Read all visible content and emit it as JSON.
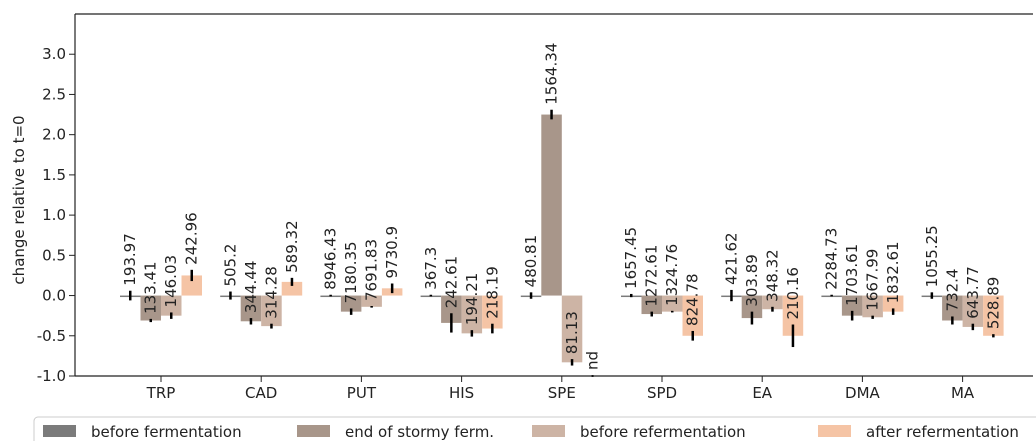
{
  "chart_data": {
    "type": "bar",
    "ylabel": "change relative to t=0",
    "xlabel": "",
    "title": "",
    "ylim": [
      -1.0,
      3.5
    ],
    "y_ticks": [
      -1.0,
      -0.5,
      0.0,
      0.5,
      1.0,
      1.5,
      2.0,
      2.5,
      3.0
    ],
    "y_tick_labels": [
      "-1.0",
      "-0.5",
      "0.0",
      "0.5",
      "1.0",
      "1.5",
      "2.0",
      "2.5",
      "3.0"
    ],
    "categories": [
      "TRP",
      "CAD",
      "PUT",
      "HIS",
      "SPE",
      "SPD",
      "EA",
      "DMA",
      "MA"
    ],
    "legend_position": "bottom",
    "series": [
      {
        "name": "before fermentation",
        "color": "#7b7b7b",
        "values": [
          0.0,
          0.0,
          0.0,
          0.0,
          0.0,
          0.0,
          0.0,
          0.0,
          0.0
        ],
        "errors": [
          0.06,
          0.05,
          0.01,
          0.01,
          0.04,
          0.02,
          0.07,
          0.01,
          0.04
        ],
        "labels": [
          "193.97",
          "505.2",
          "8946.43",
          "367.3",
          "480.81",
          "1657.45",
          "421.62",
          "2284.73",
          "1055.25"
        ]
      },
      {
        "name": "end of stormy ferm.",
        "color": "#a8968a",
        "values": [
          -0.31,
          -0.32,
          -0.2,
          -0.34,
          2.25,
          -0.23,
          -0.28,
          -0.25,
          -0.31
        ],
        "errors": [
          0.02,
          0.04,
          0.04,
          0.12,
          0.06,
          0.03,
          0.08,
          0.06,
          0.05
        ],
        "labels": [
          "133.41",
          "344.44",
          "7180.35",
          "242.61",
          "1564.34",
          "1272.61",
          "303.89",
          "1703.61",
          "732.4"
        ]
      },
      {
        "name": "before refermentation",
        "color": "#cdb4a5",
        "values": [
          -0.25,
          -0.38,
          -0.14,
          -0.47,
          -0.83,
          -0.2,
          -0.17,
          -0.27,
          -0.39
        ],
        "errors": [
          0.04,
          0.03,
          0.01,
          0.04,
          0.04,
          0.01,
          0.03,
          0.02,
          0.04
        ],
        "labels": [
          "146.03",
          "314.28",
          "7691.83",
          "194.21",
          "81.13",
          "1324.76",
          "348.32",
          "1667.99",
          "643.77"
        ]
      },
      {
        "name": "after refermentation",
        "color": "#f5c4a5",
        "values": [
          0.25,
          0.17,
          0.09,
          -0.41,
          -1.0,
          -0.5,
          -0.5,
          -0.2,
          -0.5
        ],
        "errors": [
          0.07,
          0.05,
          0.06,
          0.06,
          0.0,
          0.06,
          0.14,
          0.04,
          0.02
        ],
        "labels": [
          "242.96",
          "589.32",
          "9730.9",
          "218.19",
          "nd",
          "824.78",
          "210.16",
          "1832.61",
          "528.89"
        ]
      }
    ]
  }
}
